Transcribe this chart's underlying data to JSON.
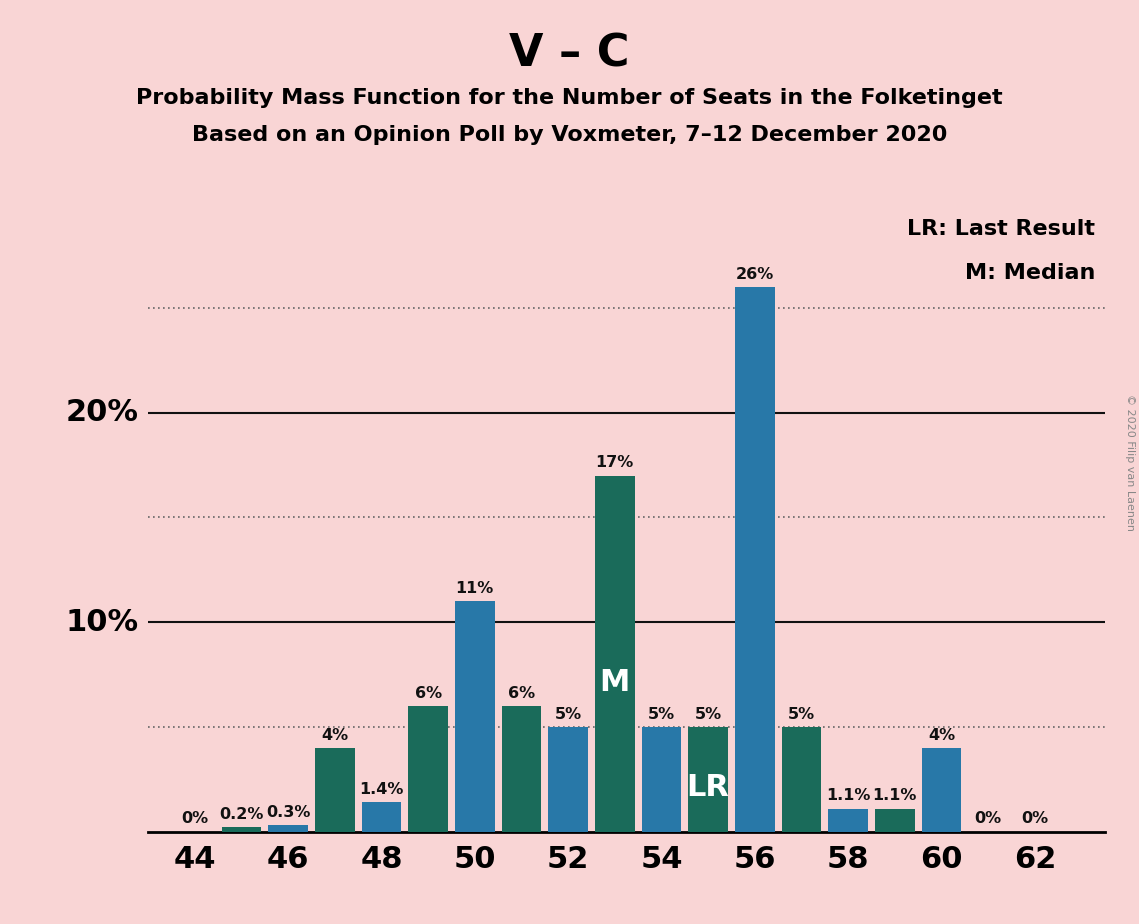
{
  "title_main": "V – C",
  "title_sub1": "Probability Mass Function for the Number of Seats in the Folketinget",
  "title_sub2": "Based on an Opinion Poll by Voxmeter, 7–12 December 2020",
  "copyright": "© 2020 Filip van Laenen",
  "seats": [
    44,
    45,
    46,
    47,
    48,
    49,
    50,
    51,
    52,
    53,
    54,
    55,
    56,
    57,
    58,
    59,
    60,
    61,
    62
  ],
  "probabilities": [
    0.0,
    0.2,
    0.3,
    4.0,
    1.4,
    6.0,
    11.0,
    6.0,
    5.0,
    17.0,
    5.0,
    5.0,
    26.0,
    5.0,
    1.1,
    1.1,
    4.0,
    0.0,
    0.0
  ],
  "labels": [
    "0%",
    "0.2%",
    "0.3%",
    "4%",
    "1.4%",
    "6%",
    "11%",
    "6%",
    "5%",
    "17%",
    "5%",
    "5%",
    "26%",
    "5%",
    "1.1%",
    "1.1%",
    "4%",
    "0%",
    "0%"
  ],
  "color_blue": "#2878a8",
  "color_teal": "#1a6b5a",
  "median_seat": 53,
  "lr_seat": 55,
  "background_color": "#f9d5d5",
  "solid_gridlines": [
    10.0,
    20.0
  ],
  "dotted_gridlines": [
    5.0,
    15.0,
    25.0
  ],
  "xlim": [
    43.0,
    63.5
  ],
  "ylim": [
    0,
    30
  ],
  "xtick_positions": [
    44,
    46,
    48,
    50,
    52,
    54,
    56,
    58,
    60,
    62
  ],
  "bar_width": 0.85,
  "legend_lr": "LR: Last Result",
  "legend_m": "M: Median",
  "label_fontsize": 11.5,
  "title_fontsize_main": 32,
  "title_fontsize_sub": 16,
  "axis_tick_fontsize": 22,
  "ylabel_fontsize": 22,
  "marker_fontsize": 22,
  "legend_fontsize": 16,
  "dotted_gridline_color": "#666666",
  "solid_gridline_color": "#111111",
  "copyright_color": "#888888"
}
